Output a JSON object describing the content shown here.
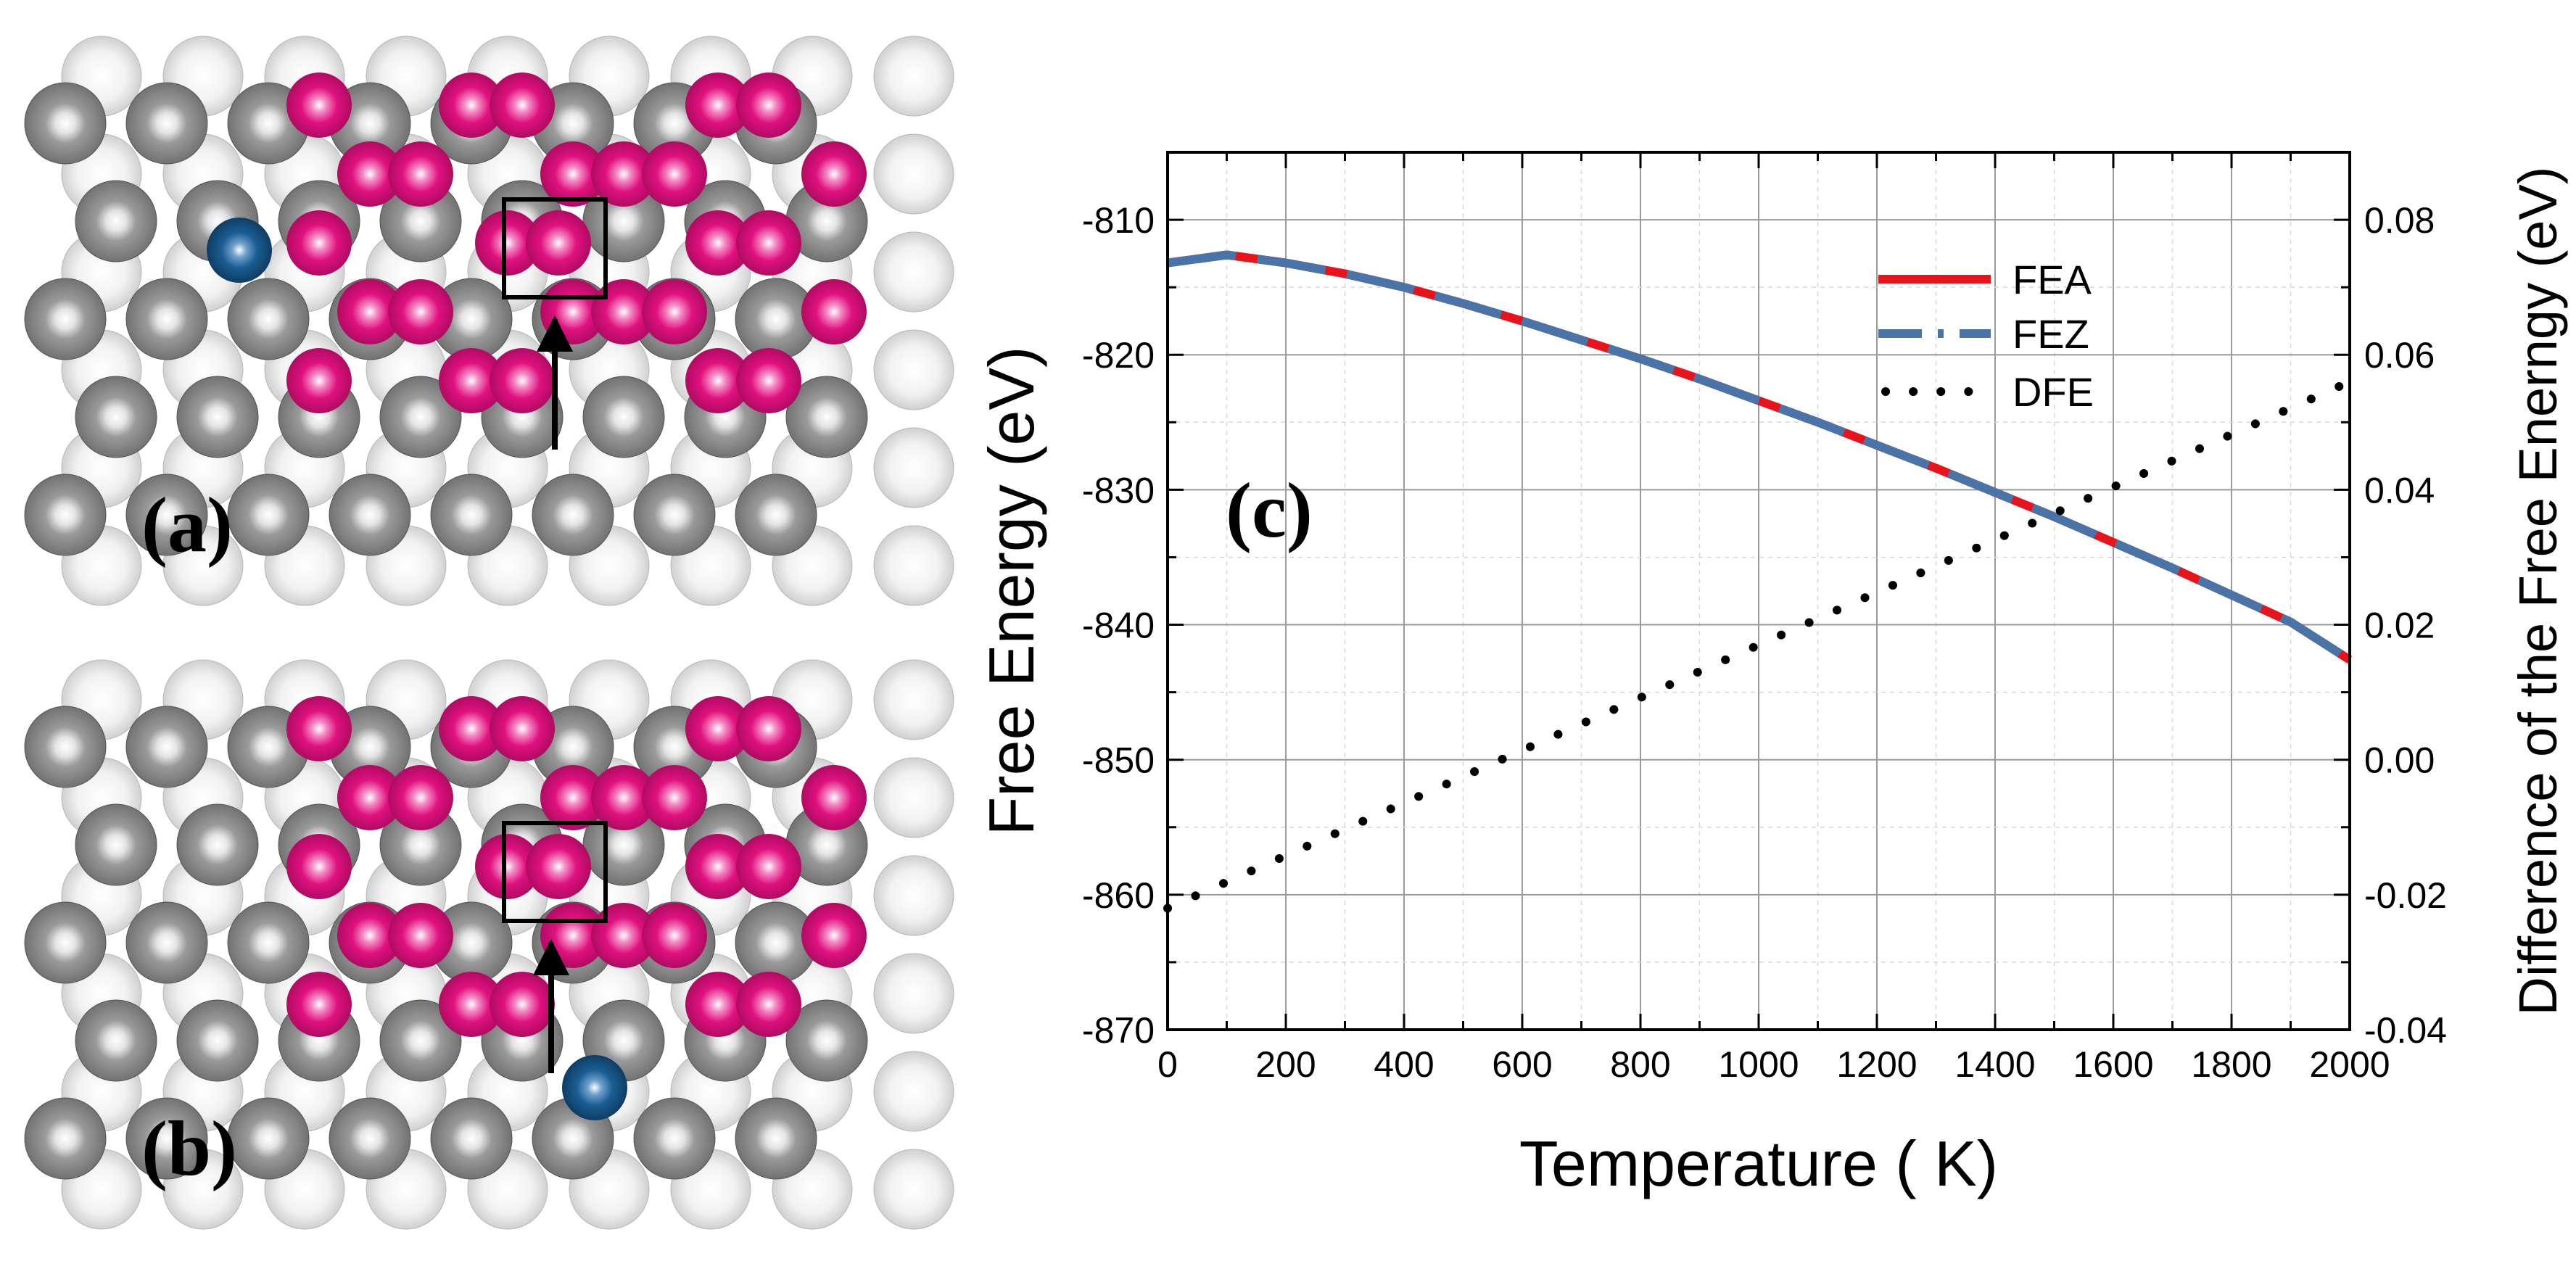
{
  "panels": {
    "a": {
      "label": "(a)"
    },
    "b": {
      "label": "(b)"
    }
  },
  "colors": {
    "fea": "#e8141b",
    "fez": "#4a73a8",
    "dfe": "#000000",
    "pink": "#e0117f",
    "blue": "#1a5d93"
  },
  "chart_data": {
    "type": "line",
    "panel_label": "(c)",
    "xlabel": "Temperature ( K)",
    "ylabel": "Free Energy (eV)",
    "y2label": "Difference of the Free Enerngy (eV)",
    "xlim": [
      0,
      2000
    ],
    "ylim": [
      -870,
      -805
    ],
    "y2lim": [
      -0.04,
      0.09
    ],
    "x_ticks": [
      0,
      200,
      400,
      600,
      800,
      1000,
      1200,
      1400,
      1600,
      1800,
      2000
    ],
    "y_ticks": [
      -870,
      -860,
      -850,
      -840,
      -830,
      -820,
      -810
    ],
    "y2_ticks": [
      -0.04,
      -0.02,
      0.0,
      0.02,
      0.04,
      0.06,
      0.08
    ],
    "x_tick_labels": [
      "0",
      "200",
      "400",
      "600",
      "800",
      "1000",
      "1200",
      "1400",
      "1600",
      "1800",
      "2000"
    ],
    "y_tick_labels": [
      "-870",
      "-860",
      "-850",
      "-840",
      "-830",
      "-820",
      "-810"
    ],
    "y2_tick_labels": [
      "-0.04",
      "-0.02",
      "0.00",
      "0.02",
      "0.04",
      "0.06",
      "0.08"
    ],
    "grid": true,
    "legend_position": "upper-middle",
    "series": [
      {
        "name": "FEA",
        "axis": "left",
        "style": "solid",
        "x": [
          0,
          100,
          200,
          300,
          400,
          500,
          600,
          700,
          800,
          900,
          1000,
          1100,
          1200,
          1300,
          1400,
          1500,
          1600,
          1700,
          1800,
          1900,
          2000
        ],
        "y": [
          -813.2,
          -812.6,
          -813.2,
          -814.0,
          -815.0,
          -816.2,
          -817.5,
          -818.9,
          -820.3,
          -821.8,
          -823.4,
          -825.0,
          -826.7,
          -828.4,
          -830.2,
          -832.0,
          -833.9,
          -835.8,
          -837.8,
          -839.8,
          -842.6
        ]
      },
      {
        "name": "FEZ",
        "axis": "left",
        "style": "dashed",
        "x": [
          0,
          100,
          200,
          300,
          400,
          500,
          600,
          700,
          800,
          900,
          1000,
          1100,
          1200,
          1300,
          1400,
          1500,
          1600,
          1700,
          1800,
          1900,
          2000
        ],
        "y": [
          -813.2,
          -812.6,
          -813.2,
          -814.0,
          -815.0,
          -816.2,
          -817.5,
          -818.9,
          -820.3,
          -821.8,
          -823.4,
          -825.0,
          -826.7,
          -828.4,
          -830.2,
          -832.0,
          -833.9,
          -835.8,
          -837.8,
          -839.8,
          -842.6
        ]
      },
      {
        "name": "DFE",
        "axis": "right",
        "style": "dotted",
        "x": [
          0,
          2000
        ],
        "y": [
          -0.022,
          0.056
        ]
      }
    ]
  }
}
